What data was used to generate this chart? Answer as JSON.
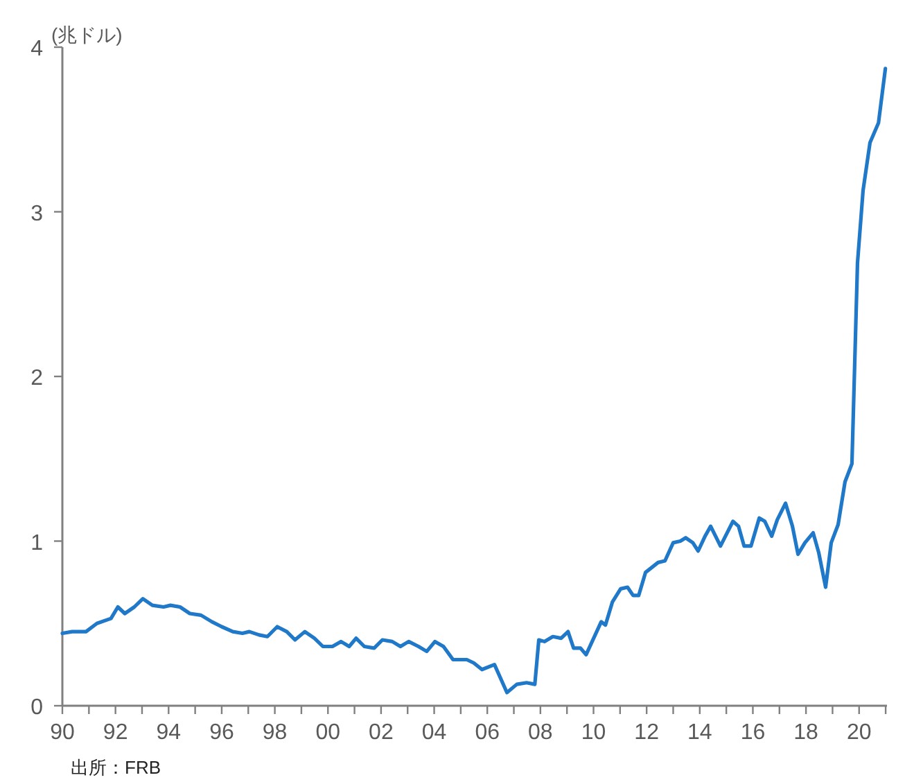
{
  "chart_data": {
    "type": "line",
    "ylabel": "(兆ドル)",
    "annotations": [
      "出所：FRB"
    ],
    "xlim": [
      1990,
      2021.05
    ],
    "ylim": [
      0,
      4
    ],
    "yticks": [
      0,
      1,
      2,
      3,
      4
    ],
    "xticks": [
      {
        "value": 1990,
        "label": "90"
      },
      {
        "value": 1991,
        "label": null
      },
      {
        "value": 1992,
        "label": "92"
      },
      {
        "value": 1993,
        "label": null
      },
      {
        "value": 1994,
        "label": "94"
      },
      {
        "value": 1995,
        "label": null
      },
      {
        "value": 1996,
        "label": "96"
      },
      {
        "value": 1997,
        "label": null
      },
      {
        "value": 1998,
        "label": "98"
      },
      {
        "value": 1999,
        "label": null
      },
      {
        "value": 2000,
        "label": "00"
      },
      {
        "value": 2001,
        "label": null
      },
      {
        "value": 2002,
        "label": "02"
      },
      {
        "value": 2003,
        "label": null
      },
      {
        "value": 2004,
        "label": "04"
      },
      {
        "value": 2005,
        "label": null
      },
      {
        "value": 2006,
        "label": "06"
      },
      {
        "value": 2007,
        "label": null
      },
      {
        "value": 2008,
        "label": "08"
      },
      {
        "value": 2009,
        "label": null
      },
      {
        "value": 2010,
        "label": "10"
      },
      {
        "value": 2011,
        "label": null
      },
      {
        "value": 2012,
        "label": "12"
      },
      {
        "value": 2013,
        "label": null
      },
      {
        "value": 2014,
        "label": "14"
      },
      {
        "value": 2015,
        "label": null
      },
      {
        "value": 2016,
        "label": "16"
      },
      {
        "value": 2017,
        "label": null
      },
      {
        "value": 2018,
        "label": "18"
      },
      {
        "value": 2019,
        "label": null
      },
      {
        "value": 2020,
        "label": "20"
      },
      {
        "value": 2021,
        "label": null
      }
    ],
    "grid": false,
    "marker": "none",
    "line_style": "solid",
    "series": [
      {
        "color": "#1f78c8",
        "x": [
          1990.0,
          1990.37,
          1990.89,
          1991.3,
          1991.83,
          1992.09,
          1992.35,
          1992.71,
          1993.03,
          1993.39,
          1993.81,
          1994.07,
          1994.43,
          1994.8,
          1995.22,
          1995.63,
          1996.0,
          1996.42,
          1996.78,
          1997.04,
          1997.41,
          1997.72,
          1998.09,
          1998.45,
          1998.76,
          1999.13,
          1999.49,
          1999.81,
          2000.17,
          2000.49,
          2000.8,
          2001.06,
          2001.37,
          2001.74,
          2002.05,
          2002.42,
          2002.73,
          2003.04,
          2003.41,
          2003.72,
          2004.03,
          2004.35,
          2004.71,
          2005.23,
          2005.49,
          2005.8,
          2006.27,
          2006.74,
          2007.11,
          2007.48,
          2007.79,
          2007.94,
          2008.15,
          2008.47,
          2008.78,
          2009.04,
          2009.25,
          2009.51,
          2009.72,
          2010.29,
          2010.45,
          2010.71,
          2011.02,
          2011.28,
          2011.49,
          2011.7,
          2011.96,
          2012.43,
          2012.69,
          2013.0,
          2013.27,
          2013.47,
          2013.74,
          2013.94,
          2014.2,
          2014.41,
          2014.78,
          2015.25,
          2015.46,
          2015.67,
          2015.93,
          2016.24,
          2016.45,
          2016.71,
          2016.92,
          2017.23,
          2017.49,
          2017.7,
          2017.96,
          2018.27,
          2018.48,
          2018.74,
          2018.95,
          2019.21,
          2019.47,
          2019.73,
          2019.94,
          2020.15,
          2020.41,
          2020.73,
          2020.99
        ],
        "values": [
          0.44,
          0.45,
          0.45,
          0.5,
          0.53,
          0.6,
          0.56,
          0.6,
          0.65,
          0.61,
          0.6,
          0.61,
          0.6,
          0.56,
          0.55,
          0.51,
          0.48,
          0.45,
          0.44,
          0.45,
          0.43,
          0.42,
          0.48,
          0.45,
          0.4,
          0.45,
          0.41,
          0.36,
          0.36,
          0.39,
          0.36,
          0.41,
          0.36,
          0.35,
          0.4,
          0.39,
          0.36,
          0.39,
          0.36,
          0.33,
          0.39,
          0.36,
          0.28,
          0.28,
          0.26,
          0.22,
          0.25,
          0.08,
          0.13,
          0.14,
          0.13,
          0.4,
          0.39,
          0.42,
          0.41,
          0.45,
          0.35,
          0.35,
          0.31,
          0.51,
          0.49,
          0.63,
          0.71,
          0.72,
          0.67,
          0.67,
          0.81,
          0.87,
          0.88,
          0.99,
          1.0,
          1.02,
          0.99,
          0.94,
          1.03,
          1.09,
          0.97,
          1.12,
          1.09,
          0.97,
          0.97,
          1.14,
          1.12,
          1.03,
          1.13,
          1.23,
          1.09,
          0.92,
          0.99,
          1.05,
          0.93,
          0.72,
          0.99,
          1.1,
          1.36,
          1.47,
          2.69,
          3.13,
          3.42,
          3.54,
          3.87
        ]
      }
    ]
  }
}
